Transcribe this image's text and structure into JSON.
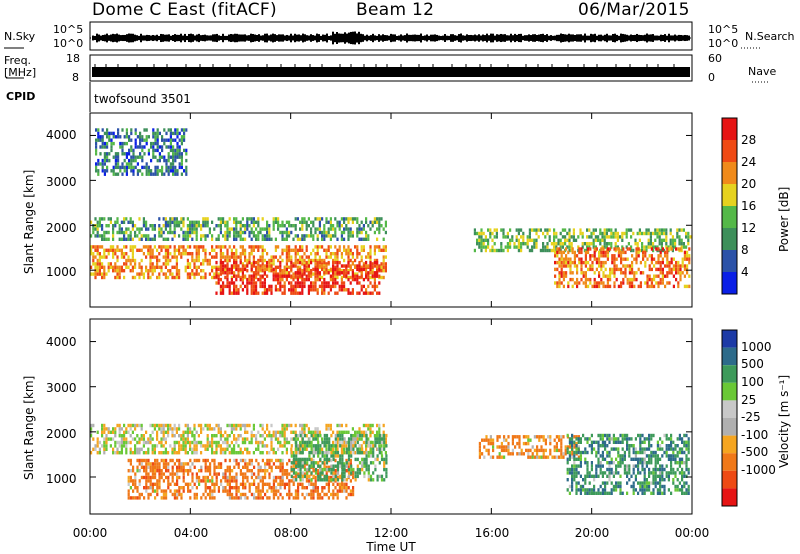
{
  "header": {
    "station": "Dome C East (fitACF)",
    "beam": "Beam 12",
    "date": "06/Mar/2015"
  },
  "top_panels": {
    "nsky_label": "N.Sky",
    "nsky_ticks": [
      "10^5",
      "10^0"
    ],
    "nsearch_label": "N.Search",
    "nsearch_ticks": [
      "10^5",
      "10^0"
    ],
    "freq_label": "Freq.",
    "freq_unit": "[MHz]",
    "freq_ticks": [
      "18",
      "8"
    ],
    "nave_label": "Nave",
    "nave_ticks": [
      "60",
      "0"
    ],
    "cpid_label": "CPID",
    "cpid_value": "twofsound 3501"
  },
  "colors": {
    "power_scale": [
      "#0a1fe6",
      "#2b52a8",
      "#3d8f5a",
      "#54b848",
      "#e6d21f",
      "#f08a1a",
      "#ef4a14",
      "#e61414"
    ],
    "velocity_scale": [
      "#1c3aa6",
      "#2d6b8a",
      "#3d9a5a",
      "#6ac836",
      "#c8c8c8",
      "#b0b0b0",
      "#f5a520",
      "#f07818",
      "#ee4a14",
      "#e61414"
    ]
  },
  "chart_data": [
    {
      "type": "heatmap",
      "title": "",
      "xlabel": "",
      "ylabel": "Slant Range [km]",
      "xlim": [
        0,
        24
      ],
      "ylim": [
        180,
        4500
      ],
      "x_ticks": [
        0,
        4,
        8,
        12,
        16,
        20,
        24
      ],
      "y_ticks": [
        1000,
        2000,
        3000,
        4000
      ],
      "colorbar": {
        "label": "Power [dB]",
        "range": [
          0,
          32
        ],
        "ticks": [
          "4",
          "8",
          "12",
          "16",
          "20",
          "24",
          "28"
        ]
      },
      "echo_regions": [
        {
          "t0": 0.0,
          "t1": 11.8,
          "r0": 1650,
          "r1": 2150,
          "value": 12
        },
        {
          "t0": 0.0,
          "t1": 11.8,
          "r0": 800,
          "r1": 1500,
          "value": 22
        },
        {
          "t0": 5.0,
          "t1": 11.5,
          "r0": 450,
          "r1": 1200,
          "value": 28
        },
        {
          "t0": 0.2,
          "t1": 3.8,
          "r0": 3100,
          "r1": 4100,
          "value": 8
        },
        {
          "t0": 15.3,
          "t1": 23.9,
          "r0": 1400,
          "r1": 1900,
          "value": 14
        },
        {
          "t0": 18.5,
          "t1": 23.9,
          "r0": 600,
          "r1": 1500,
          "value": 24
        }
      ]
    },
    {
      "type": "heatmap",
      "title": "",
      "xlabel": "Time UT",
      "ylabel": "Slant Range [km]",
      "xlim": [
        0,
        24
      ],
      "ylim": [
        180,
        4500
      ],
      "x_ticks": [
        0,
        4,
        8,
        12,
        16,
        20,
        24
      ],
      "x_tick_labels": [
        "00:00",
        "04:00",
        "08:00",
        "12:00",
        "16:00",
        "20:00",
        "00:00"
      ],
      "y_ticks": [
        1000,
        2000,
        3000,
        4000
      ],
      "colorbar": {
        "label": "Velocity [m s⁻¹]",
        "ticks": [
          "1000",
          "500",
          "100",
          "25",
          "-25",
          "-100",
          "-500",
          "-1000"
        ]
      },
      "echo_regions": [
        {
          "t0": 0.0,
          "t1": 11.8,
          "r0": 1500,
          "r1": 2150,
          "value": 0
        },
        {
          "t0": 1.5,
          "t1": 10.5,
          "r0": 500,
          "r1": 1400,
          "value": -300
        },
        {
          "t0": 8.0,
          "t1": 11.8,
          "r0": 900,
          "r1": 1900,
          "value": 150
        },
        {
          "t0": 15.5,
          "t1": 19.5,
          "r0": 1400,
          "r1": 1900,
          "value": -200
        },
        {
          "t0": 19.0,
          "t1": 23.9,
          "r0": 600,
          "r1": 1900,
          "value": 400
        }
      ]
    }
  ],
  "time_tick_labels": [
    "00:00",
    "04:00",
    "08:00",
    "12:00",
    "16:00",
    "20:00",
    "00:00"
  ],
  "range_tick_labels": [
    "1000",
    "2000",
    "3000",
    "4000"
  ]
}
